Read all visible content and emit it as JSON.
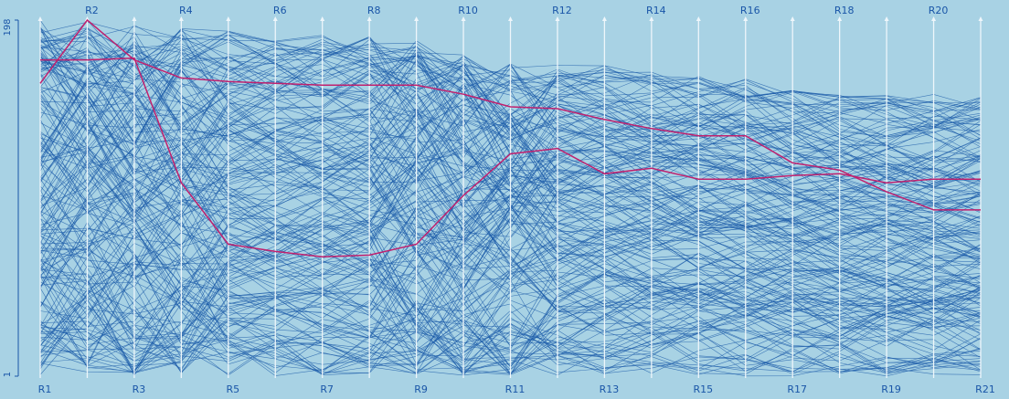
{
  "chart_data": {
    "type": "parallel-coordinates",
    "axes": [
      "R1",
      "R2",
      "R3",
      "R4",
      "R5",
      "R6",
      "R7",
      "R8",
      "R9",
      "R10",
      "R11",
      "R12",
      "R13",
      "R14",
      "R15",
      "R16",
      "R17",
      "R18",
      "R19",
      "R20",
      "R21"
    ],
    "y_range": [
      1,
      198
    ],
    "y_ticks": [
      "198",
      "1"
    ],
    "highlighted_series": [
      {
        "values": [
          163,
          198,
          176,
          166,
          164,
          163,
          162,
          162,
          162,
          157,
          150,
          149,
          143,
          138,
          134,
          134,
          119,
          115,
          103,
          93,
          93
        ]
      },
      {
        "values": [
          176,
          176,
          177,
          108,
          74,
          70,
          67,
          68,
          74,
          101,
          124,
          127,
          113,
          116,
          110,
          110,
          112,
          113,
          108,
          110,
          110
        ]
      }
    ]
  },
  "colors": {
    "background": "#a8d2e4",
    "line": "#1a5aa8",
    "axis": "#eef6fb",
    "highlight": "#c0206e",
    "text": "#1a56a8"
  }
}
